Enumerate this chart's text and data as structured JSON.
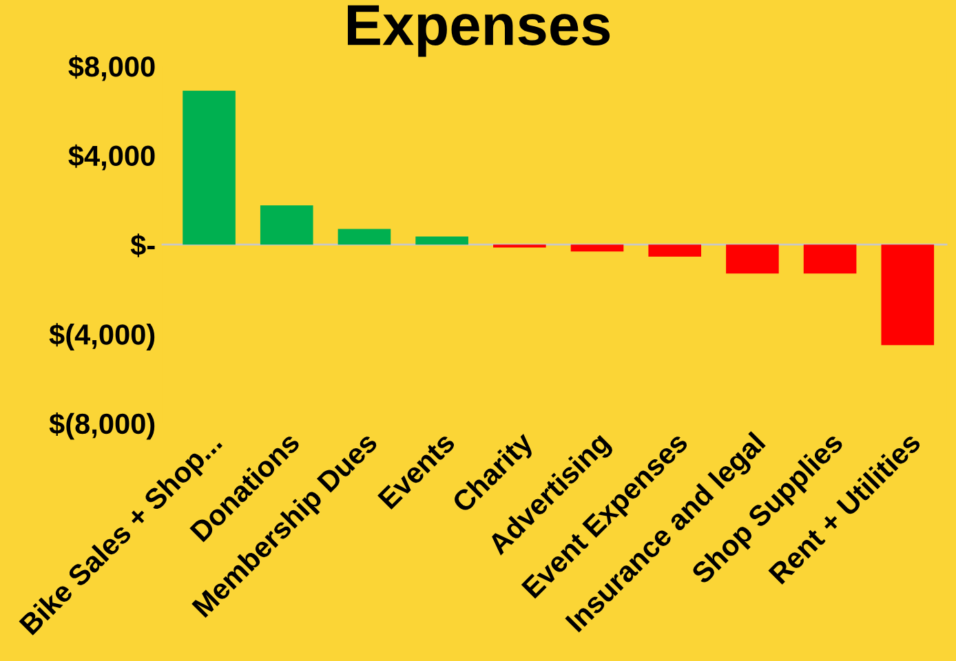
{
  "chart_data": {
    "type": "bar",
    "title": "Expenses",
    "categories": [
      "Bike Sales + Shop...",
      "Donations",
      "Membership Dues",
      "Events",
      "Charity",
      "Advertising",
      "Event Expenses",
      "Insurance and legal",
      "Shop Supplies",
      "Rent + Utilities"
    ],
    "values": [
      6900,
      1760,
      700,
      360,
      -130,
      -310,
      -540,
      -1300,
      -1300,
      -4510
    ],
    "colors": [
      "#00b050",
      "#00b050",
      "#00b050",
      "#00b050",
      "#ff0000",
      "#ff0000",
      "#ff0000",
      "#ff0000",
      "#ff0000",
      "#ff0000"
    ],
    "ylim": [
      -8000,
      8000
    ],
    "yticks": [
      {
        "value": 8000,
        "label": "$8,000"
      },
      {
        "value": 4000,
        "label": "$4,000"
      },
      {
        "value": 0,
        "label": "$-"
      },
      {
        "value": -4000,
        "label": "$(4,000)"
      },
      {
        "value": -8000,
        "label": "$(8,000)"
      }
    ],
    "legend": false
  }
}
